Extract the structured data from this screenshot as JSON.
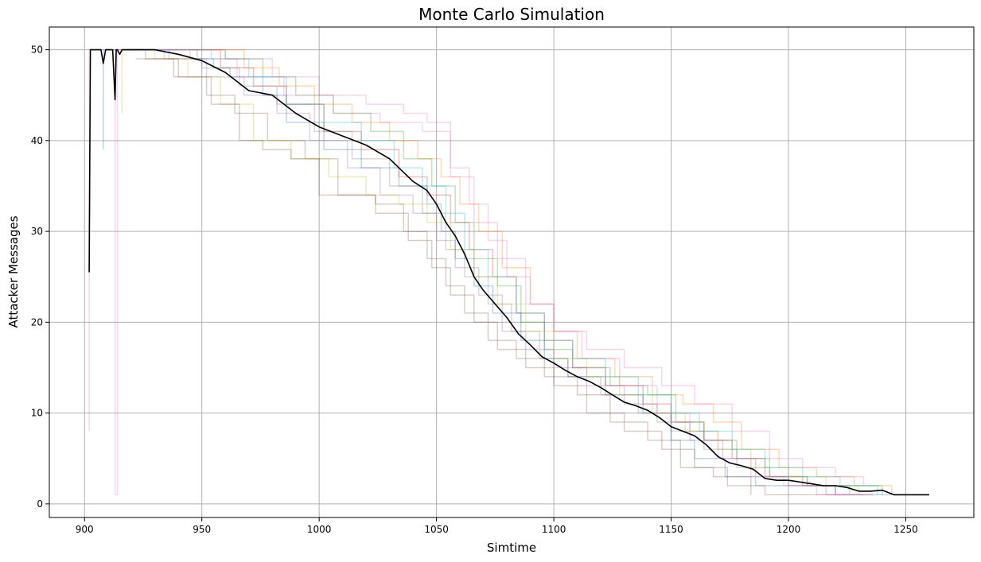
{
  "chart_data": {
    "type": "line",
    "title": "Monte Carlo Simulation",
    "xlabel": "Simtime",
    "ylabel": "Attacker Messages",
    "xlim": [
      885,
      1279
    ],
    "ylim": [
      -1.5,
      52.5
    ],
    "xticks": [
      900,
      950,
      1000,
      1050,
      1100,
      1150,
      1200,
      1250
    ],
    "yticks": [
      0,
      10,
      20,
      30,
      40,
      50
    ],
    "grid": true,
    "legend": "none",
    "series": [
      {
        "color": "#1f77b4",
        "x": [
          908,
          908,
          909,
          911,
          913,
          930,
          948,
          955,
          962,
          976,
          986,
          1002,
          1018,
          1034,
          1046,
          1052,
          1058,
          1066,
          1074,
          1086,
          1096,
          1106,
          1122,
          1138,
          1150,
          1160,
          1173,
          1186,
          1200,
          1220,
          1240,
          1250
        ],
        "y": [
          39,
          50,
          50,
          50,
          50,
          50,
          49,
          48,
          47,
          45,
          42,
          39,
          37,
          35,
          33,
          30,
          27,
          24,
          21,
          18,
          16,
          14,
          12,
          10,
          7,
          5,
          3,
          2,
          2,
          1,
          1,
          1
        ]
      },
      {
        "color": "#ff7f0e",
        "x": [
          915,
          930,
          950,
          968,
          983,
          998,
          1014,
          1030,
          1042,
          1052,
          1060,
          1068,
          1078,
          1090,
          1100,
          1110,
          1126,
          1142,
          1155,
          1168,
          1180,
          1196,
          1212,
          1228,
          1244
        ],
        "y": [
          50,
          50,
          50,
          48,
          46,
          44,
          42,
          40,
          38,
          36,
          33,
          30,
          26,
          22,
          19,
          16,
          14,
          12,
          11,
          9,
          6,
          4,
          3,
          2,
          1
        ]
      },
      {
        "color": "#2ca02c",
        "x": [
          916,
          940,
          960,
          976,
          990,
          1006,
          1022,
          1036,
          1048,
          1058,
          1066,
          1076,
          1086,
          1096,
          1108,
          1124,
          1140,
          1152,
          1164,
          1178,
          1192,
          1208,
          1224,
          1240
        ],
        "y": [
          50,
          50,
          49,
          47,
          45,
          43,
          41,
          38,
          35,
          31,
          27,
          24,
          20,
          17,
          15,
          13,
          12,
          9,
          7,
          5,
          3,
          2,
          2,
          1
        ]
      },
      {
        "color": "#d62728",
        "x": [
          917,
          935,
          958,
          972,
          986,
          1002,
          1018,
          1034,
          1046,
          1056,
          1064,
          1074,
          1084,
          1096,
          1108,
          1122,
          1138,
          1150,
          1164,
          1176,
          1190,
          1206,
          1220,
          1236
        ],
        "y": [
          50,
          50,
          48,
          46,
          44,
          41,
          39,
          36,
          34,
          31,
          28,
          25,
          21,
          18,
          15,
          13,
          11,
          9,
          7,
          5,
          3,
          2,
          1,
          1
        ]
      },
      {
        "color": "#9467bd",
        "x": [
          918,
          936,
          952,
          968,
          982,
          996,
          1012,
          1026,
          1040,
          1050,
          1058,
          1068,
          1078,
          1088,
          1100,
          1114,
          1130,
          1144,
          1158,
          1172,
          1186,
          1200,
          1216,
          1232
        ],
        "y": [
          50,
          49,
          47,
          45,
          43,
          40,
          37,
          34,
          32,
          29,
          26,
          23,
          19,
          17,
          15,
          13,
          11,
          9,
          7,
          5,
          3,
          2,
          1,
          1
        ]
      },
      {
        "color": "#8c564b",
        "x": [
          918,
          926,
          940,
          952,
          964,
          978,
          994,
          1008,
          1024,
          1038,
          1048,
          1056,
          1066,
          1076,
          1088,
          1100,
          1114,
          1130,
          1146,
          1160,
          1174,
          1190,
          1206,
          1220
        ],
        "y": [
          50,
          49,
          47,
          45,
          43,
          40,
          38,
          34,
          32,
          29,
          26,
          23,
          20,
          17,
          15,
          13,
          10,
          8,
          6,
          4,
          2,
          1,
          1,
          1
        ]
      },
      {
        "color": "#e377c2",
        "x": [
          902,
          902,
          903,
          910,
          913,
          913,
          914,
          925,
          945,
          965,
          985,
          1006,
          1026,
          1044,
          1056,
          1066,
          1076,
          1088,
          1100,
          1112,
          1128,
          1144,
          1158,
          1170,
          1184,
          1198,
          1212,
          1224
        ],
        "y": [
          8,
          50,
          50,
          50,
          50,
          1,
          50,
          50,
          49,
          47,
          45,
          43,
          42,
          41,
          36,
          31,
          27,
          22,
          19,
          16,
          13,
          10,
          8,
          5,
          3,
          2,
          1,
          1
        ]
      },
      {
        "color": "#7f7f7f",
        "x": [
          918,
          934,
          950,
          966,
          982,
          998,
          1014,
          1030,
          1044,
          1054,
          1062,
          1072,
          1082,
          1094,
          1106,
          1120,
          1136,
          1150,
          1164,
          1178,
          1192,
          1208,
          1226
        ],
        "y": [
          50,
          49,
          48,
          46,
          44,
          41,
          38,
          35,
          32,
          28,
          25,
          22,
          19,
          16,
          14,
          12,
          10,
          8,
          6,
          4,
          3,
          2,
          1
        ]
      },
      {
        "color": "#bcbd22",
        "x": [
          916,
          916,
          918,
          930,
          944,
          958,
          972,
          988,
          1004,
          1020,
          1034,
          1046,
          1056,
          1066,
          1076,
          1088,
          1100,
          1114,
          1128,
          1142,
          1156,
          1170,
          1184,
          1200,
          1216,
          1230
        ],
        "y": [
          43,
          50,
          50,
          49,
          47,
          44,
          40,
          38,
          36,
          34,
          33,
          31,
          28,
          25,
          22,
          19,
          16,
          14,
          12,
          10,
          8,
          6,
          4,
          3,
          2,
          1
        ]
      },
      {
        "color": "#17becf",
        "x": [
          918,
          936,
          954,
          970,
          986,
          1002,
          1018,
          1032,
          1044,
          1054,
          1062,
          1072,
          1084,
          1096,
          1108,
          1122,
          1136,
          1150,
          1162,
          1176,
          1190,
          1206,
          1222,
          1238
        ],
        "y": [
          50,
          50,
          49,
          47,
          44,
          42,
          40,
          37,
          35,
          32,
          28,
          25,
          21,
          18,
          16,
          14,
          12,
          10,
          8,
          6,
          4,
          3,
          2,
          1
        ]
      },
      {
        "color": "#8c564b",
        "x": [
          922,
          938,
          954,
          966,
          976,
          988,
          1000,
          1010,
          1024,
          1036,
          1046,
          1054,
          1062,
          1072,
          1084,
          1096,
          1110,
          1124,
          1140,
          1154,
          1168,
          1184
        ],
        "y": [
          49,
          47,
          44,
          40,
          39,
          38,
          34,
          34,
          33,
          30,
          27,
          24,
          21,
          18,
          16,
          14,
          12,
          9,
          7,
          4,
          3,
          1
        ]
      },
      {
        "color": "#e377c2",
        "x": [
          920,
          940,
          960,
          980,
          1000,
          1020,
          1036,
          1046,
          1056,
          1064,
          1072,
          1080,
          1090,
          1100,
          1114,
          1130,
          1146,
          1160,
          1176,
          1192,
          1206,
          1220,
          1232
        ],
        "y": [
          50,
          50,
          49,
          47,
          45,
          44,
          43,
          42,
          37,
          33,
          29,
          25,
          22,
          19,
          17,
          15,
          13,
          11,
          8,
          5,
          4,
          3,
          2
        ]
      },
      {
        "color": "#000000",
        "mean": true,
        "x": [
          902,
          902.5,
          903,
          904,
          906,
          907,
          908,
          909,
          910,
          911,
          912,
          913,
          913.5,
          914,
          915,
          916,
          917,
          920,
          930,
          940,
          950,
          960,
          970,
          980,
          990,
          1000,
          1010,
          1020,
          1030,
          1040,
          1046,
          1050,
          1054,
          1058,
          1062,
          1066,
          1070,
          1075,
          1080,
          1085,
          1090,
          1095,
          1100,
          1105,
          1110,
          1115,
          1120,
          1125,
          1130,
          1135,
          1140,
          1145,
          1150,
          1155,
          1160,
          1165,
          1170,
          1175,
          1180,
          1185,
          1190,
          1195,
          1200,
          1205,
          1210,
          1215,
          1220,
          1225,
          1230,
          1235,
          1240,
          1245,
          1250,
          1255,
          1260
        ],
        "y": [
          25.5,
          50,
          50,
          50,
          50,
          50,
          48.5,
          50,
          50,
          50,
          50,
          44.5,
          50,
          50,
          49.5,
          50,
          50,
          50,
          50,
          49.5,
          48.8,
          47.5,
          45.5,
          45,
          43,
          41.5,
          40.5,
          39.5,
          38,
          35.5,
          34.5,
          33,
          31,
          29.5,
          27.5,
          25,
          23.5,
          22,
          20.5,
          18.7,
          17.5,
          16.2,
          15.5,
          14.7,
          14,
          13.5,
          12.8,
          12,
          11.2,
          10.8,
          10.3,
          9.5,
          8.5,
          8,
          7.5,
          6.5,
          5.2,
          4.5,
          4.2,
          3.8,
          2.8,
          2.6,
          2.6,
          2.4,
          2.2,
          2,
          2,
          1.8,
          1.4,
          1.4,
          1.5,
          1,
          1,
          1,
          1
        ]
      }
    ]
  }
}
